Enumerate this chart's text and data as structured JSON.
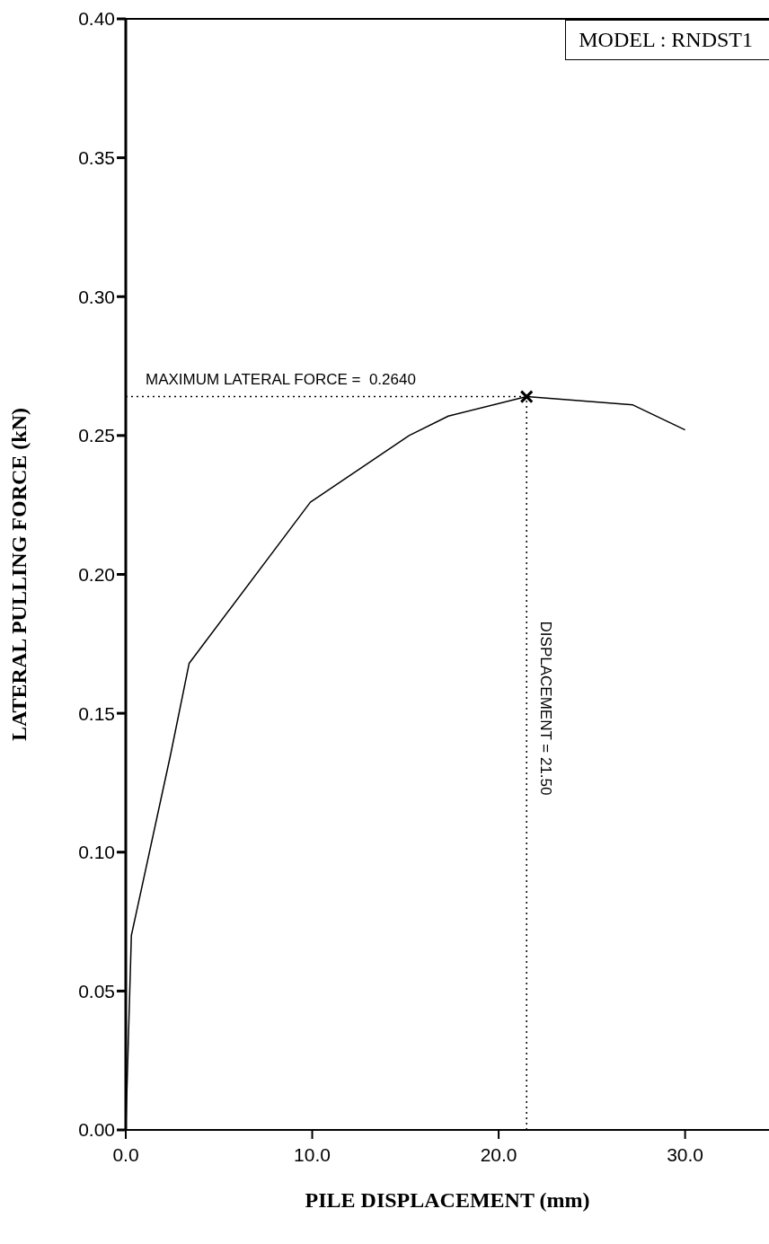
{
  "chart_data": {
    "type": "line",
    "xlabel": "PILE DISPLACEMENT (mm)",
    "ylabel": "LATERAL PULLING FORCE (kN)",
    "annotations": [
      "MODEL : RNDST1"
    ],
    "series": [
      {
        "color": "#000000",
        "marker": "none",
        "x": [
          0,
          0.3,
          2.4,
          3.4,
          9.9,
          15.2,
          17.3,
          21.5,
          27.2,
          30.0
        ],
        "values": [
          0,
          0.07,
          0.135,
          0.168,
          0.226,
          0.25,
          0.257,
          0.264,
          0.261,
          0.252
        ]
      },
      {
        "type": "scatter",
        "color": "#000000",
        "marker": "cross",
        "x": [
          21.5
        ],
        "values": [
          0.264
        ]
      }
    ],
    "ref_lines": [
      {
        "axis": "y",
        "value": 0.264,
        "label": "MAXIMUM LATERAL FORCE =  0.2640",
        "line_style": "dotted",
        "color": "#000000"
      },
      {
        "axis": "x",
        "value": 21.5,
        "label": "DISPLACEMENT = 21.50",
        "line_style": "dotted",
        "color": "#000000"
      }
    ],
    "xlim": [
      0,
      34.5
    ],
    "xticks": [
      {
        "value": 0,
        "label": "0.0"
      },
      {
        "value": 10,
        "label": "10.0"
      },
      {
        "value": 20,
        "label": "20.0"
      },
      {
        "value": 30,
        "label": "30.0"
      }
    ],
    "ylim": [
      0,
      0.4
    ],
    "yticks": [
      {
        "value": 0,
        "label": "0.00"
      },
      {
        "value": 0.05,
        "label": "0.05"
      },
      {
        "value": 0.1,
        "label": "0.10"
      },
      {
        "value": 0.15,
        "label": "0.15"
      },
      {
        "value": 0.2,
        "label": "0.20"
      },
      {
        "value": 0.25,
        "label": "0.25"
      },
      {
        "value": 0.3,
        "label": "0.30"
      },
      {
        "value": 0.35,
        "label": "0.35"
      },
      {
        "value": 0.4,
        "label": "0.40"
      }
    ],
    "grid": false
  }
}
